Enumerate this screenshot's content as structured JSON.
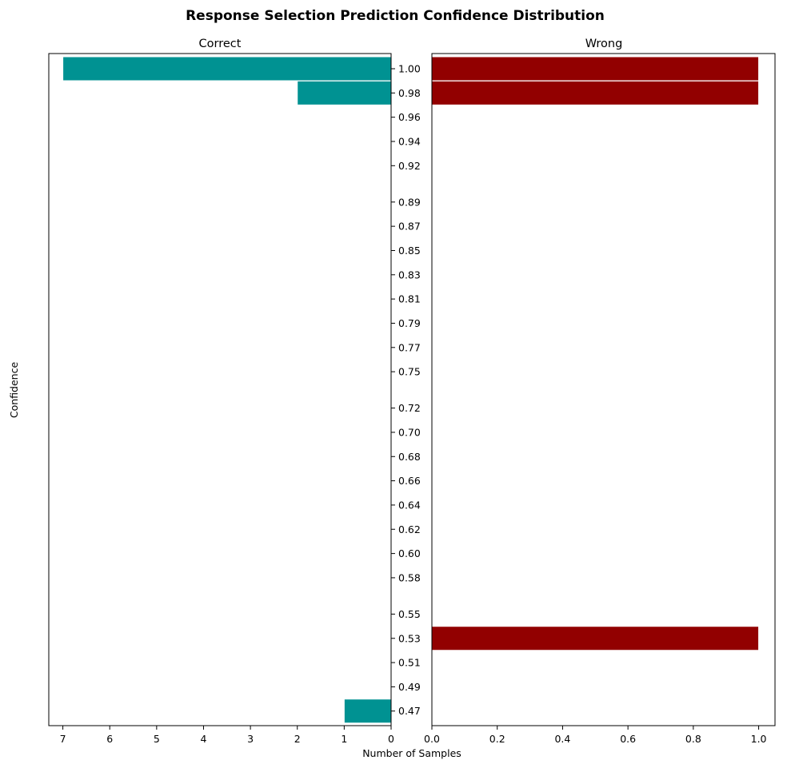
{
  "title": "Response Selection Prediction Confidence Distribution",
  "colors": {
    "correct": "#009292",
    "wrong": "#920000",
    "edge": "#ffffff"
  },
  "chart_data": {
    "type": "bar",
    "orientation": "horizontal",
    "title": "Response Selection Prediction Confidence Distribution",
    "ylabel": "Confidence",
    "xlabel": "Number of Samples",
    "shared_y_ticks": [
      "1.00",
      "0.98",
      "0.96",
      "0.94",
      "0.92",
      "0.89",
      "0.87",
      "0.85",
      "0.83",
      "0.81",
      "0.79",
      "0.77",
      "0.75",
      "0.72",
      "0.70",
      "0.68",
      "0.66",
      "0.64",
      "0.62",
      "0.60",
      "0.58",
      "0.55",
      "0.53",
      "0.51",
      "0.49",
      "0.47"
    ],
    "panels": [
      {
        "name": "Correct",
        "x_direction": "inverted",
        "xlim": [
          0,
          7.3
        ],
        "xticks": [
          7,
          6,
          5,
          4,
          3,
          2,
          1,
          0
        ],
        "xtick_labels": [
          "7",
          "6",
          "5",
          "4",
          "3",
          "2",
          "1",
          "0"
        ],
        "bars": [
          {
            "confidence": 1.0,
            "count": 7
          },
          {
            "confidence": 0.98,
            "count": 2
          },
          {
            "confidence": 0.47,
            "count": 1
          }
        ]
      },
      {
        "name": "Wrong",
        "x_direction": "normal",
        "xlim": [
          0,
          1.05
        ],
        "xticks": [
          0.0,
          0.2,
          0.4,
          0.6,
          0.8,
          1.0
        ],
        "xtick_labels": [
          "0.0",
          "0.2",
          "0.4",
          "0.6",
          "0.8",
          "1.0"
        ],
        "bars": [
          {
            "confidence": 1.0,
            "count": 1
          },
          {
            "confidence": 0.98,
            "count": 1
          },
          {
            "confidence": 0.53,
            "count": 1
          }
        ]
      }
    ]
  }
}
